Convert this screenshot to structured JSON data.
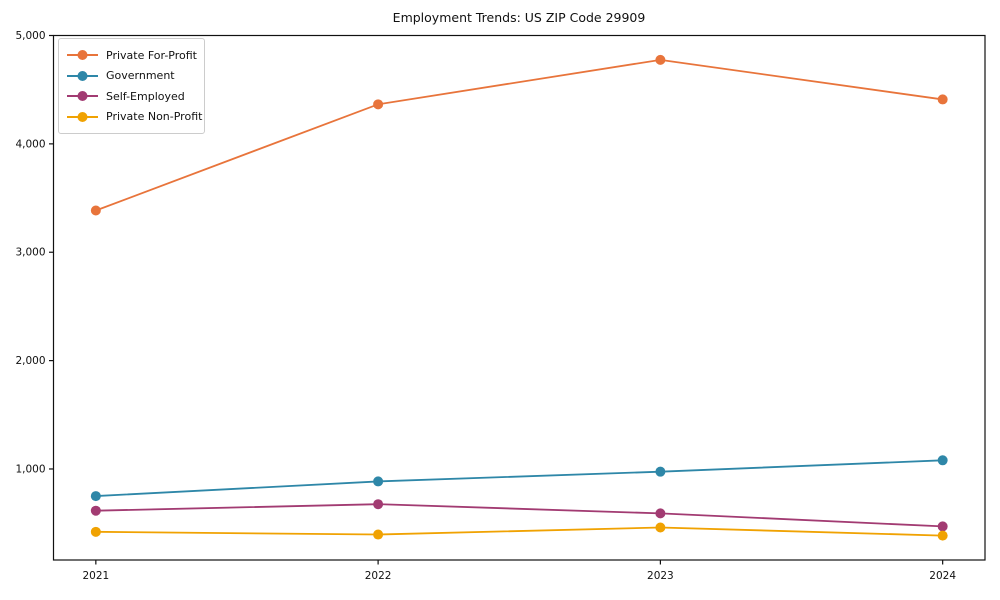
{
  "chart_data": {
    "type": "line",
    "title": "Employment Trends: US ZIP Code 29909",
    "x": [
      2021,
      2022,
      2023,
      2024
    ],
    "x_tick_labels": [
      "2021",
      "2022",
      "2023",
      "2024"
    ],
    "series": [
      {
        "name": "Private For-Profit",
        "color": "#E8743B",
        "values": [
          3385,
          4365,
          4775,
          4410
        ]
      },
      {
        "name": "Government",
        "color": "#2E87A8",
        "values": [
          750,
          885,
          975,
          1080
        ]
      },
      {
        "name": "Self-Employed",
        "color": "#A23B72",
        "values": [
          615,
          675,
          590,
          470
        ]
      },
      {
        "name": "Private Non-Profit",
        "color": "#F0A202",
        "values": [
          420,
          395,
          460,
          385
        ]
      }
    ],
    "yticks": [
      1000,
      2000,
      3000,
      4000,
      5000
    ],
    "ytick_labels": [
      "1,000",
      "2,000",
      "3,000",
      "4,000",
      "5,000"
    ],
    "ylim": [
      160,
      5000
    ],
    "xlim": [
      2020.85,
      2024.15
    ],
    "legend_position": "upper-left",
    "grid": false,
    "marker": "circle",
    "marker_radius": 5,
    "line_width": 1.8
  }
}
